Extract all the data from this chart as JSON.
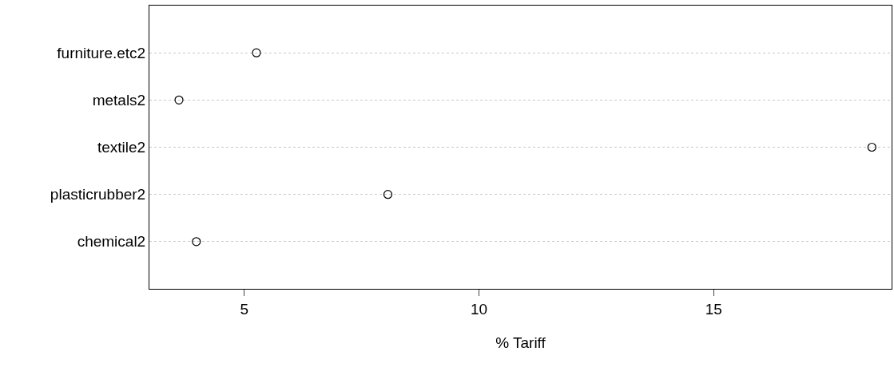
{
  "chart_data": {
    "type": "scatter",
    "orientation": "horizontal",
    "categories": [
      "furniture.etc2",
      "metals2",
      "textile2",
      "plasticrubber2",
      "chemical2"
    ],
    "values": [
      5.26,
      3.61,
      18.37,
      8.06,
      3.98
    ],
    "color": "#000000",
    "marker": "circle",
    "xlabel": "% Tariff",
    "xlim": [
      2.98,
      18.79
    ],
    "xticks": [
      5,
      10,
      15
    ],
    "grid": "y"
  }
}
